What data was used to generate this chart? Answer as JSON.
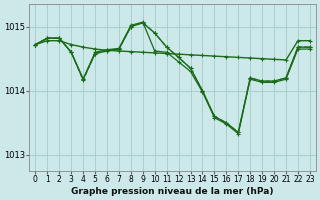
{
  "bg_color": "#cce8e8",
  "grid_color": "#a8d0d0",
  "line_color": "#1a6b1a",
  "title": "Graphe pression niveau de la mer (hPa)",
  "ylim": [
    1012.75,
    1015.35
  ],
  "yticks": [
    1013,
    1014,
    1015
  ],
  "xlim": [
    -0.5,
    23.5
  ],
  "xticks": [
    0,
    1,
    2,
    3,
    4,
    5,
    6,
    7,
    8,
    9,
    10,
    11,
    12,
    13,
    14,
    15,
    16,
    17,
    18,
    19,
    20,
    21,
    22,
    23
  ],
  "s1_y": [
    1014.72,
    1014.78,
    1014.78,
    1014.72,
    1014.68,
    1014.65,
    1014.63,
    1014.62,
    1014.61,
    1014.6,
    1014.59,
    1014.58,
    1014.57,
    1014.56,
    1014.55,
    1014.54,
    1014.53,
    1014.52,
    1014.51,
    1014.5,
    1014.49,
    1014.48,
    1014.78,
    1014.78
  ],
  "s2_y": [
    1014.72,
    1014.82,
    1014.82,
    1014.6,
    1014.18,
    1014.58,
    1014.62,
    1014.65,
    1015.0,
    1015.06,
    1014.9,
    1014.68,
    1014.52,
    1014.35,
    1014.0,
    1013.6,
    1013.5,
    1013.35,
    1014.2,
    1014.15,
    1014.15,
    1014.2,
    1014.68,
    1014.68
  ],
  "s3_y": [
    1014.72,
    1014.82,
    1014.82,
    1014.6,
    1014.16,
    1014.58,
    1014.62,
    1014.65,
    1015.0,
    1015.06,
    1014.9,
    1014.68,
    1014.52,
    1014.35,
    1014.0,
    1013.6,
    1013.5,
    1013.35,
    1014.2,
    1014.15,
    1014.15,
    1014.2,
    1014.68,
    1014.68
  ],
  "s4_y": [
    1014.72,
    1014.82,
    1014.82,
    1014.6,
    1014.18,
    1014.6,
    1014.64,
    1014.66,
    1015.02,
    1015.07,
    1014.62,
    1014.6,
    1014.45,
    1014.3,
    1013.98,
    1013.58,
    1013.48,
    1013.33,
    1014.18,
    1014.13,
    1014.13,
    1014.18,
    1014.65,
    1014.65
  ]
}
